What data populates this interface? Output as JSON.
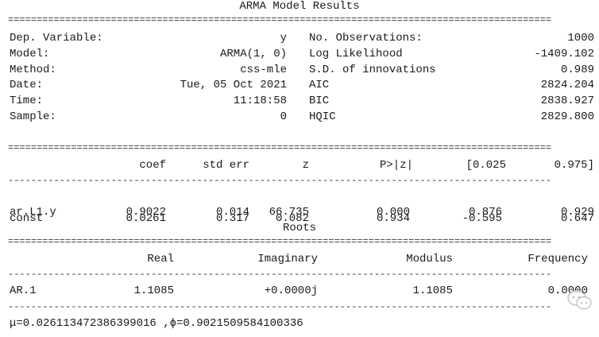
{
  "title": "ARMA Model Results",
  "rule_double": "===============================================================================================",
  "rule_single": "-----------------------------------------------------------------------------------------------",
  "summary": {
    "left": [
      {
        "label": "Dep. Variable:",
        "value": "y"
      },
      {
        "label": "Model:",
        "value": "ARMA(1, 0)"
      },
      {
        "label": "Method:",
        "value": "css-mle"
      },
      {
        "label": "Date:",
        "value": "Tue, 05 Oct 2021"
      },
      {
        "label": "Time:",
        "value": "11:18:58"
      },
      {
        "label": "Sample:",
        "value": "0"
      }
    ],
    "right": [
      {
        "label": "No. Observations:",
        "value": "1000"
      },
      {
        "label": "Log Likelihood",
        "value": "-1409.102"
      },
      {
        "label": "S.D. of innovations",
        "value": "0.989"
      },
      {
        "label": "AIC",
        "value": "2824.204"
      },
      {
        "label": "BIC",
        "value": "2838.927"
      },
      {
        "label": "HQIC",
        "value": "2829.800"
      }
    ]
  },
  "coef_table": {
    "headers": [
      "coef",
      "std err",
      "z",
      "P>|z|",
      "[0.025",
      "0.975]"
    ],
    "rows": [
      {
        "name": "const",
        "cells": [
          "0.0261",
          "0.317",
          "0.082",
          "0.934",
          "-0.595",
          "0.647"
        ]
      },
      {
        "name": "ar.L1.y",
        "cells": [
          "0.9022",
          "0.014",
          "66.735",
          "0.000",
          "0.876",
          "0.929"
        ]
      }
    ]
  },
  "roots": {
    "title": "Roots",
    "headers": [
      "Real",
      "Imaginary",
      "Modulus",
      "Frequency"
    ],
    "rows": [
      {
        "name": "AR.1",
        "cells": [
          "1.1085",
          "+0.0000j",
          "1.1085",
          "0.0000"
        ]
      }
    ]
  },
  "footer": "μ=0.026113472386399016 ,ϕ=0.9021509584100336",
  "watermark_icon": "wechat-icon"
}
